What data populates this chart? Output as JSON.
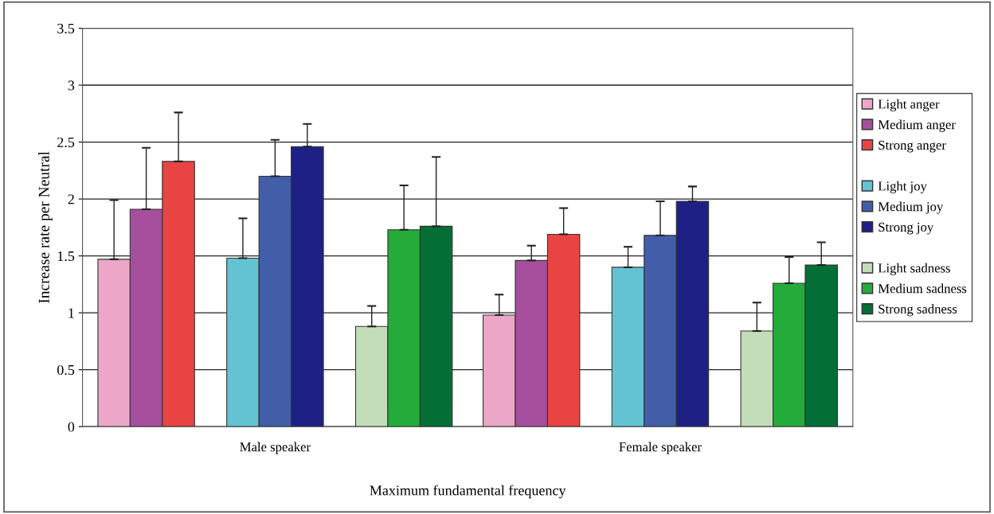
{
  "chart_data": {
    "type": "bar",
    "xlabel": "Maximum fundamental frequency",
    "ylabel": "Increase rate per Neutral",
    "categories": [
      "Male speaker",
      "Female speaker"
    ],
    "ylim": [
      0,
      3.5
    ],
    "yticks": [
      0,
      0.5,
      1,
      1.5,
      2,
      2.5,
      3,
      3.5
    ],
    "grid": "y",
    "legend": "right",
    "series": [
      {
        "name": "Light anger",
        "color": "#eca6c8",
        "values": [
          1.47,
          0.98
        ],
        "errors": [
          [
            1.47,
            1.99
          ],
          [
            0.98,
            1.16
          ]
        ]
      },
      {
        "name": "Medium anger",
        "color": "#a64f9c",
        "values": [
          1.91,
          1.46
        ],
        "errors": [
          [
            1.91,
            2.45
          ],
          [
            1.46,
            1.59
          ]
        ]
      },
      {
        "name": "Strong anger",
        "color": "#e84444",
        "values": [
          2.33,
          1.69
        ],
        "errors": [
          [
            2.33,
            2.76
          ],
          [
            1.69,
            1.92
          ]
        ]
      },
      {
        "name": "Light joy",
        "color": "#63c3d3",
        "values": [
          1.48,
          1.4
        ],
        "errors": [
          [
            1.48,
            1.83
          ],
          [
            1.4,
            1.58
          ]
        ]
      },
      {
        "name": "Medium joy",
        "color": "#435ea9",
        "values": [
          2.2,
          1.68
        ],
        "errors": [
          [
            2.2,
            2.52
          ],
          [
            1.68,
            1.98
          ]
        ]
      },
      {
        "name": "Strong joy",
        "color": "#1f2085",
        "values": [
          2.46,
          1.98
        ],
        "errors": [
          [
            2.46,
            2.66
          ],
          [
            1.98,
            2.11
          ]
        ]
      },
      {
        "name": "Light sadness",
        "color": "#c3ddb8",
        "values": [
          0.88,
          0.84
        ],
        "errors": [
          [
            0.88,
            1.06
          ],
          [
            0.84,
            1.09
          ]
        ]
      },
      {
        "name": "Medium sadness",
        "color": "#23ac3a",
        "values": [
          1.73,
          1.26
        ],
        "errors": [
          [
            1.73,
            2.12
          ],
          [
            1.26,
            1.49
          ]
        ]
      },
      {
        "name": "Strong sadness",
        "color": "#036f36",
        "values": [
          1.76,
          1.42
        ],
        "errors": [
          [
            1.76,
            2.37
          ],
          [
            1.42,
            1.62
          ]
        ]
      }
    ]
  }
}
